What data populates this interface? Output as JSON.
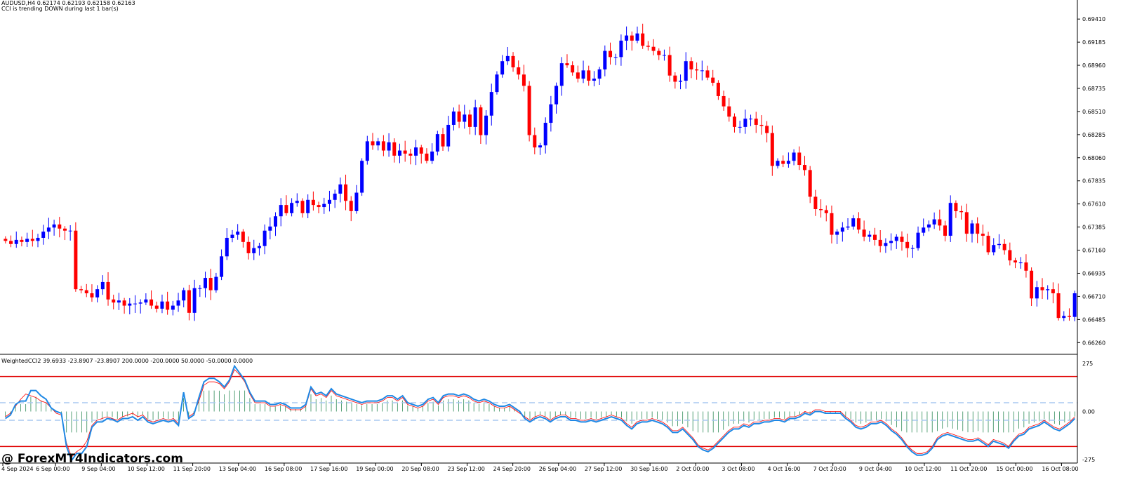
{
  "header": {
    "symbol_line": "AUDUSD,H4  0.62174 0.62193 0.62158 0.62163",
    "status_line": "CCI is trending DOWN during last 1 bar(s)"
  },
  "indicator": {
    "label": "WeightedCCI2 39.6933 -23.8907 -23.8907 200.0000 -200.0000 50.0000 -50.0000 0.0000"
  },
  "watermark": "@ ForexMT4Indicators.com",
  "colors": {
    "bull": "#0000ff",
    "bear": "#ff0000",
    "cci_main": "#1e88e5",
    "cci_signal": "#ff0000",
    "levels_outer": "#e00000",
    "levels_inner": "#a8c8f0",
    "histogram": "#2e8b57",
    "axis": "#000000"
  },
  "chart_data": [
    {
      "type": "candlestick",
      "price_ticks": [
        "0.69410",
        "0.69185",
        "0.68960",
        "0.68735",
        "0.68510",
        "0.68285",
        "0.68060",
        "0.67835",
        "0.67610",
        "0.67385",
        "0.67160",
        "0.66935",
        "0.66710",
        "0.66485",
        "0.66260"
      ],
      "x_tick_labels": [
        "4 Sep 2024",
        "6 Sep 00:00",
        "9 Sep 04:00",
        "10 Sep 12:00",
        "11 Sep 20:00",
        "13 Sep 04:00",
        "16 Sep 08:00",
        "17 Sep 16:00",
        "19 Sep 00:00",
        "20 Sep 08:00",
        "23 Sep 12:00",
        "24 Sep 20:00",
        "26 Sep 04:00",
        "27 Sep 12:00",
        "30 Sep 16:00",
        "2 Oct 00:00",
        "3 Oct 08:00",
        "4 Oct 16:00",
        "7 Oct 20:00",
        "9 Oct 04:00",
        "10 Oct 12:00",
        "11 Oct 20:00",
        "15 Oct 00:00",
        "16 Oct 08:00"
      ],
      "ylim": [
        0.6618,
        0.695
      ],
      "close": [
        0.6725,
        0.6722,
        0.6726,
        0.6724,
        0.6727,
        0.6725,
        0.6728,
        0.6734,
        0.6738,
        0.6741,
        0.6737,
        0.6735,
        0.6735,
        0.6678,
        0.6677,
        0.6674,
        0.667,
        0.6678,
        0.6685,
        0.6668,
        0.6665,
        0.6667,
        0.6662,
        0.6664,
        0.6664,
        0.6665,
        0.6668,
        0.6662,
        0.6659,
        0.6666,
        0.6658,
        0.6662,
        0.6667,
        0.6677,
        0.6655,
        0.6679,
        0.6679,
        0.6689,
        0.6677,
        0.669,
        0.671,
        0.6728,
        0.6731,
        0.6734,
        0.6724,
        0.6713,
        0.6718,
        0.672,
        0.6735,
        0.6739,
        0.6749,
        0.676,
        0.6752,
        0.6762,
        0.6764,
        0.6752,
        0.6765,
        0.676,
        0.6758,
        0.6761,
        0.6765,
        0.6771,
        0.678,
        0.6764,
        0.6754,
        0.6772,
        0.6803,
        0.6822,
        0.6818,
        0.6822,
        0.6813,
        0.6821,
        0.6808,
        0.6813,
        0.681,
        0.6808,
        0.6816,
        0.681,
        0.6803,
        0.6812,
        0.6829,
        0.6817,
        0.6838,
        0.6851,
        0.6841,
        0.6848,
        0.6836,
        0.6855,
        0.6828,
        0.6847,
        0.687,
        0.6887,
        0.69,
        0.6905,
        0.6894,
        0.6887,
        0.6876,
        0.6828,
        0.6816,
        0.6818,
        0.684,
        0.6858,
        0.6876,
        0.6898,
        0.6896,
        0.6889,
        0.6883,
        0.6891,
        0.6881,
        0.6883,
        0.6892,
        0.691,
        0.6904,
        0.6904,
        0.692,
        0.6925,
        0.692,
        0.6927,
        0.6915,
        0.6914,
        0.691,
        0.6906,
        0.6906,
        0.6886,
        0.688,
        0.6881,
        0.69,
        0.6892,
        0.6891,
        0.6891,
        0.6884,
        0.6879,
        0.6866,
        0.6856,
        0.6846,
        0.6836,
        0.6836,
        0.6844,
        0.6844,
        0.6838,
        0.6837,
        0.683,
        0.6798,
        0.6803,
        0.68,
        0.6803,
        0.6811,
        0.6799,
        0.6794,
        0.6768,
        0.6756,
        0.6755,
        0.6752,
        0.6731,
        0.6734,
        0.6738,
        0.6739,
        0.6747,
        0.6736,
        0.6729,
        0.6731,
        0.6726,
        0.672,
        0.6723,
        0.6725,
        0.6729,
        0.6724,
        0.6718,
        0.6718,
        0.6733,
        0.6738,
        0.6741,
        0.6746,
        0.674,
        0.673,
        0.6762,
        0.6754,
        0.6753,
        0.6732,
        0.6742,
        0.6732,
        0.673,
        0.6714,
        0.6721,
        0.6722,
        0.6716,
        0.6706,
        0.6704,
        0.6704,
        0.6696,
        0.6669,
        0.668,
        0.6677,
        0.6678,
        0.6674,
        0.665,
        0.6652,
        0.6651,
        0.6674
      ]
    },
    {
      "type": "line",
      "title": "WeightedCCI2",
      "levels": [
        200,
        50,
        0,
        -50,
        -200
      ],
      "ylim": [
        -275,
        275
      ],
      "y_tick_labels": [
        "275",
        "0.00",
        "-275"
      ],
      "series": [
        {
          "name": "WeightedCCI2",
          "values": [
            -40,
            -20,
            40,
            60,
            60,
            120,
            120,
            90,
            70,
            20,
            0,
            -10,
            -200,
            -280,
            -240,
            -240,
            -200,
            -90,
            -60,
            -60,
            -40,
            -45,
            -60,
            -40,
            -40,
            -30,
            -50,
            -30,
            -60,
            -70,
            -60,
            -50,
            -60,
            -50,
            -80,
            110,
            -40,
            -20,
            80,
            170,
            190,
            190,
            170,
            140,
            180,
            260,
            220,
            180,
            110,
            60,
            60,
            60,
            40,
            40,
            50,
            40,
            20,
            20,
            20,
            40,
            140,
            100,
            110,
            90,
            130,
            100,
            90,
            80,
            70,
            60,
            50,
            60,
            60,
            60,
            70,
            90,
            90,
            70,
            90,
            50,
            40,
            30,
            40,
            70,
            80,
            50,
            90,
            100,
            100,
            90,
            100,
            90,
            70,
            60,
            70,
            60,
            40,
            30,
            30,
            40,
            20,
            0,
            -40,
            -60,
            -40,
            -30,
            -40,
            -60,
            -40,
            -30,
            -30,
            -50,
            -50,
            -60,
            -60,
            -50,
            -60,
            -50,
            -40,
            -30,
            -40,
            -50,
            -80,
            -100,
            -70,
            -60,
            -60,
            -50,
            -60,
            -70,
            -90,
            -120,
            -120,
            -100,
            -130,
            -160,
            -200,
            -220,
            -230,
            -210,
            -180,
            -150,
            -120,
            -100,
            -100,
            -80,
            -90,
            -70,
            -70,
            -60,
            -60,
            -50,
            -50,
            -60,
            -40,
            -40,
            -30,
            -10,
            -20,
            0,
            0,
            -10,
            -10,
            -10,
            -10,
            -40,
            -60,
            -90,
            -100,
            -90,
            -70,
            -70,
            -60,
            -80,
            -110,
            -130,
            -160,
            -200,
            -230,
            -250,
            -250,
            -240,
            -210,
            -160,
            -140,
            -130,
            -140,
            -150,
            -160,
            -170,
            -170,
            -160,
            -180,
            -200,
            -170,
            -180,
            -190,
            -210,
            -170,
            -140,
            -130,
            -100,
            -90,
            -80,
            -60,
            -80,
            -100,
            -110,
            -90,
            -70,
            -40
          ]
        },
        {
          "name": "",
          "values": [
            -30,
            -10,
            30,
            70,
            100,
            90,
            80,
            60,
            50,
            20,
            -10,
            -20,
            -180,
            -260,
            -230,
            -210,
            -170,
            -80,
            -50,
            -40,
            -30,
            -40,
            -50,
            -30,
            -20,
            -10,
            -30,
            -20,
            -50,
            -60,
            -50,
            -40,
            -50,
            -40,
            -70,
            100,
            -30,
            -10,
            60,
            150,
            170,
            170,
            160,
            130,
            170,
            240,
            210,
            170,
            100,
            50,
            50,
            50,
            30,
            30,
            40,
            30,
            10,
            10,
            10,
            30,
            130,
            90,
            100,
            80,
            120,
            90,
            80,
            70,
            60,
            50,
            40,
            50,
            50,
            50,
            60,
            80,
            80,
            60,
            80,
            40,
            30,
            20,
            30,
            60,
            70,
            40,
            80,
            90,
            90,
            80,
            90,
            80,
            60,
            50,
            60,
            50,
            30,
            20,
            20,
            30,
            10,
            -10,
            -30,
            -50,
            -30,
            -20,
            -30,
            -50,
            -30,
            -20,
            -20,
            -40,
            -40,
            -50,
            -50,
            -40,
            -50,
            -40,
            -30,
            -20,
            -30,
            -40,
            -70,
            -90,
            -60,
            -50,
            -50,
            -40,
            -50,
            -60,
            -80,
            -110,
            -110,
            -90,
            -120,
            -150,
            -190,
            -210,
            -220,
            -200,
            -170,
            -140,
            -110,
            -90,
            -90,
            -70,
            -80,
            -60,
            -60,
            -50,
            -50,
            -40,
            -40,
            -50,
            -30,
            -30,
            -20,
            0,
            -10,
            10,
            10,
            0,
            0,
            0,
            0,
            -30,
            -50,
            -80,
            -90,
            -80,
            -60,
            -60,
            -50,
            -70,
            -100,
            -120,
            -150,
            -190,
            -220,
            -240,
            -240,
            -230,
            -200,
            -150,
            -130,
            -120,
            -130,
            -140,
            -150,
            -160,
            -160,
            -150,
            -170,
            -190,
            -160,
            -170,
            -180,
            -200,
            -160,
            -130,
            -120,
            -90,
            -80,
            -70,
            -50,
            -70,
            -90,
            -100,
            -80,
            -60,
            -30
          ]
        }
      ]
    }
  ]
}
